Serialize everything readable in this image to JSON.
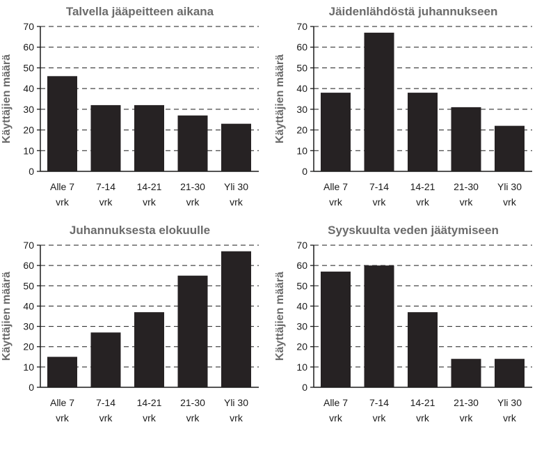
{
  "chart_data": [
    {
      "type": "bar",
      "title": "Talvella jääpeitteen aikana",
      "ylabel": "Käyttäjien määrä",
      "ylim": [
        0,
        70
      ],
      "yticks": [
        0,
        10,
        20,
        30,
        40,
        50,
        60,
        70
      ],
      "grid": "dashed horizontal",
      "categories": [
        {
          "line1": "Alle 7",
          "line2": "vrk"
        },
        {
          "line1": "7-14",
          "line2": "vrk"
        },
        {
          "line1": "14-21",
          "line2": "vrk"
        },
        {
          "line1": "21-30",
          "line2": "vrk"
        },
        {
          "line1": "Yli 30",
          "line2": "vrk"
        }
      ],
      "values": [
        46,
        32,
        32,
        27,
        23
      ]
    },
    {
      "type": "bar",
      "title": "Jäidenlähdöstä juhannukseen",
      "ylabel": "Käyttäjien määrä",
      "ylim": [
        0,
        70
      ],
      "yticks": [
        0,
        10,
        20,
        30,
        40,
        50,
        60,
        70
      ],
      "grid": "dashed horizontal",
      "categories": [
        {
          "line1": "Alle 7",
          "line2": "vrk"
        },
        {
          "line1": "7-14",
          "line2": "vrk"
        },
        {
          "line1": "14-21",
          "line2": "vrk"
        },
        {
          "line1": "21-30",
          "line2": "vrk"
        },
        {
          "line1": "Yli 30",
          "line2": "vrk"
        }
      ],
      "values": [
        38,
        67,
        38,
        31,
        22
      ]
    },
    {
      "type": "bar",
      "title": "Juhannuksesta elokuulle",
      "ylabel": "Käyttäjien määrä",
      "ylim": [
        0,
        70
      ],
      "yticks": [
        0,
        10,
        20,
        30,
        40,
        50,
        60,
        70
      ],
      "grid": "dashed horizontal",
      "categories": [
        {
          "line1": "Alle 7",
          "line2": "vrk"
        },
        {
          "line1": "7-14",
          "line2": "vrk"
        },
        {
          "line1": "14-21",
          "line2": "vrk"
        },
        {
          "line1": "21-30",
          "line2": "vrk"
        },
        {
          "line1": "Yli 30",
          "line2": "vrk"
        }
      ],
      "values": [
        15,
        27,
        37,
        55,
        67
      ]
    },
    {
      "type": "bar",
      "title": "Syyskuulta veden jäätymiseen",
      "ylabel": "Käyttäjien määrä",
      "ylim": [
        0,
        70
      ],
      "yticks": [
        0,
        10,
        20,
        30,
        40,
        50,
        60,
        70
      ],
      "grid": "dashed horizontal",
      "categories": [
        {
          "line1": "Alle 7",
          "line2": "vrk"
        },
        {
          "line1": "7-14",
          "line2": "vrk"
        },
        {
          "line1": "14-21",
          "line2": "vrk"
        },
        {
          "line1": "21-30",
          "line2": "vrk"
        },
        {
          "line1": "Yli 30",
          "line2": "vrk"
        }
      ],
      "values": [
        57,
        60,
        37,
        14,
        14
      ]
    }
  ],
  "colors": {
    "bar": "#262223",
    "title": "#6b6b6b",
    "axis": "#1a1a1a"
  }
}
